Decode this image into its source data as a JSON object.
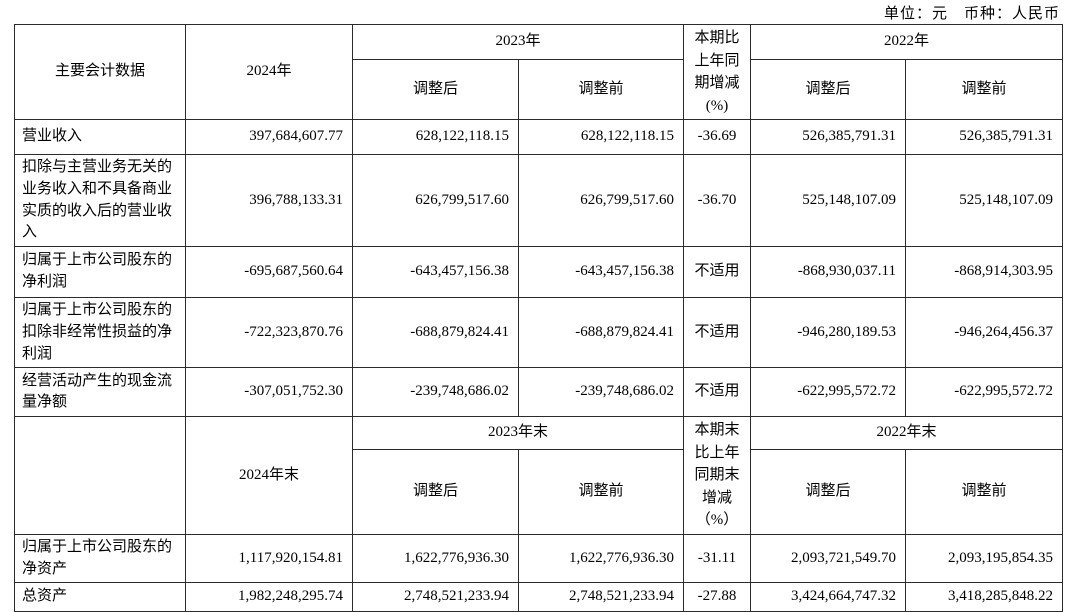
{
  "meta": {
    "unit_note": "单位：元　币种：人民币"
  },
  "sections": [
    {
      "header": {
        "label": "主要会计数据",
        "y2024": "2024年",
        "y2023": "2023年",
        "change": "本期比上年同期增减(%)",
        "y2022": "2022年",
        "sub": [
          "调整后",
          "调整前",
          "调整后",
          "调整前"
        ]
      },
      "rows": [
        {
          "label": "营业收入",
          "cells": [
            "397,684,607.77",
            "628,122,118.15",
            "628,122,118.15",
            "-36.69",
            "526,385,791.31",
            "526,385,791.31"
          ]
        },
        {
          "label": "扣除与主营业务无关的业务收入和不具备商业实质的收入后的营业收入",
          "cells": [
            "396,788,133.31",
            "626,799,517.60",
            "626,799,517.60",
            "-36.70",
            "525,148,107.09",
            "525,148,107.09"
          ]
        },
        {
          "label": "归属于上市公司股东的净利润",
          "cells": [
            "-695,687,560.64",
            "-643,457,156.38",
            "-643,457,156.38",
            "不适用",
            "-868,930,037.11",
            "-868,914,303.95"
          ]
        },
        {
          "label": "归属于上市公司股东的扣除非经常性损益的净利润",
          "cells": [
            "-722,323,870.76",
            "-688,879,824.41",
            "-688,879,824.41",
            "不适用",
            "-946,280,189.53",
            "-946,264,456.37"
          ]
        },
        {
          "label": "经营活动产生的现金流量净额",
          "cells": [
            "-307,051,752.30",
            "-239,748,686.02",
            "-239,748,686.02",
            "不适用",
            "-622,995,572.72",
            "-622,995,572.72"
          ]
        }
      ]
    },
    {
      "header": {
        "label": "",
        "y2024": "2024年末",
        "y2023": "2023年末",
        "change": "本期末比上年同期末增减（%）",
        "y2022": "2022年末",
        "sub": [
          "调整后",
          "调整前",
          "调整后",
          "调整前"
        ]
      },
      "rows": [
        {
          "label": "归属于上市公司股东的净资产",
          "cells": [
            "1,117,920,154.81",
            "1,622,776,936.30",
            "1,622,776,936.30",
            "-31.11",
            "2,093,721,549.70",
            "2,093,195,854.35"
          ]
        },
        {
          "label": "总资产",
          "cells": [
            "1,982,248,295.74",
            "2,748,521,233.94",
            "2,748,521,233.94",
            "-27.88",
            "3,424,664,747.32",
            "3,418,285,848.22"
          ]
        }
      ]
    }
  ]
}
